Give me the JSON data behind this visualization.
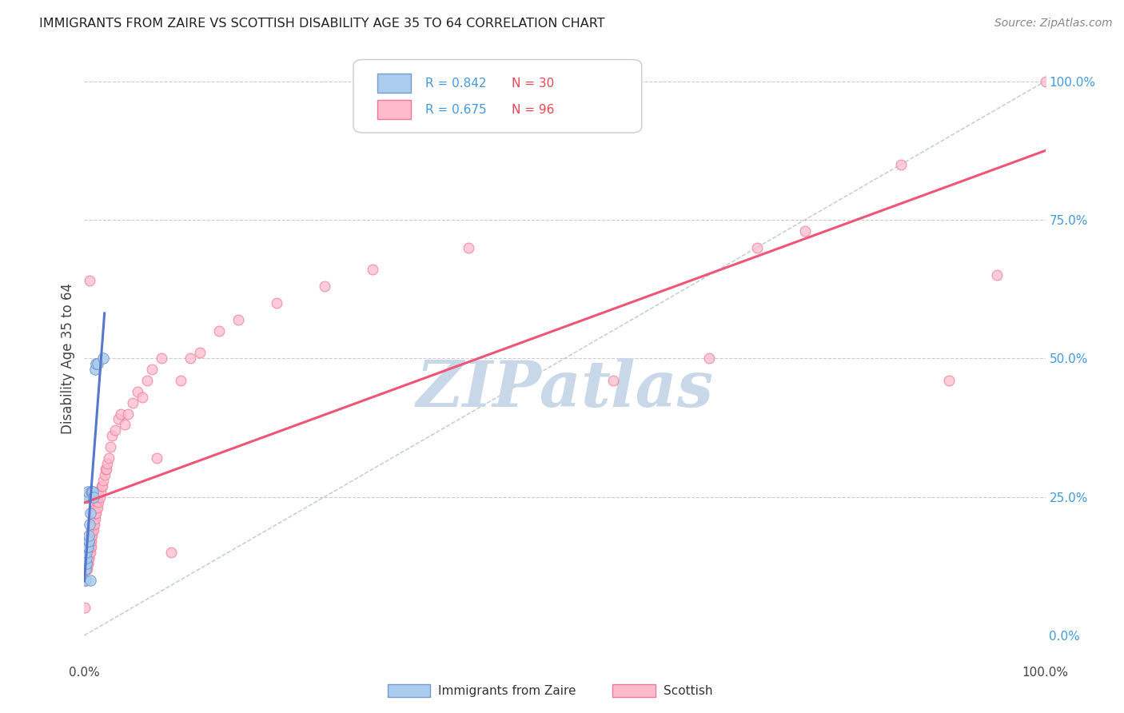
{
  "title": "IMMIGRANTS FROM ZAIRE VS SCOTTISH DISABILITY AGE 35 TO 64 CORRELATION CHART",
  "source": "Source: ZipAtlas.com",
  "ylabel": "Disability Age 35 to 64",
  "legend1_r": "0.842",
  "legend1_n": "30",
  "legend2_r": "0.675",
  "legend2_n": "96",
  "legend_label1": "Immigrants from Zaire",
  "legend_label2": "Scottish",
  "blue_line_color": "#5577CC",
  "blue_scatter_face": "#AACCEE",
  "blue_scatter_edge": "#7799CC",
  "pink_line_color": "#EE5577",
  "pink_scatter_face": "#FFBBCC",
  "pink_scatter_edge": "#EE7799",
  "diag_color": "#AABBCC",
  "grid_color": "#CCCCCC",
  "watermark_color": "#C8D8E8",
  "right_tick_color": "#4499DD",
  "zaire_x": [
    0.1,
    0.1,
    0.1,
    0.15,
    0.15,
    0.2,
    0.2,
    0.2,
    0.25,
    0.25,
    0.3,
    0.3,
    0.35,
    0.35,
    0.4,
    0.4,
    0.45,
    0.5,
    0.5,
    0.55,
    0.6,
    0.65,
    0.7,
    0.8,
    0.9,
    1.0,
    1.1,
    1.2,
    1.4,
    2.0
  ],
  "zaire_y": [
    10,
    13,
    15,
    12,
    14,
    13,
    16,
    25,
    14,
    15,
    16,
    25,
    16,
    17,
    16,
    26,
    17,
    17,
    18,
    20,
    22,
    10,
    26,
    26,
    26,
    25,
    48,
    49,
    49,
    50
  ],
  "scottish_x": [
    0.05,
    0.1,
    0.15,
    0.1,
    0.2,
    0.2,
    0.25,
    0.25,
    0.3,
    0.3,
    0.3,
    0.35,
    0.35,
    0.35,
    0.4,
    0.4,
    0.4,
    0.45,
    0.45,
    0.45,
    0.5,
    0.5,
    0.55,
    0.55,
    0.55,
    0.6,
    0.6,
    0.65,
    0.65,
    0.65,
    0.7,
    0.7,
    0.75,
    0.75,
    0.8,
    0.8,
    0.85,
    0.85,
    0.9,
    0.9,
    0.95,
    1.0,
    1.0,
    1.05,
    1.1,
    1.1,
    1.15,
    1.2,
    1.25,
    1.3,
    1.35,
    1.4,
    1.45,
    1.5,
    1.6,
    1.7,
    1.8,
    1.9,
    2.0,
    2.1,
    2.2,
    2.3,
    2.4,
    2.5,
    2.7,
    2.9,
    3.2,
    3.5,
    3.8,
    4.2,
    4.5,
    5.0,
    5.5,
    6.0,
    6.5,
    7.0,
    7.5,
    8.0,
    9.0,
    10.0,
    11.0,
    12.0,
    14.0,
    16.0,
    20.0,
    25.0,
    30.0,
    40.0,
    55.0,
    65.0,
    70.0,
    75.0,
    85.0,
    90.0,
    95.0,
    100.0
  ],
  "scottish_y": [
    5,
    10,
    12,
    10,
    12,
    14,
    13,
    15,
    12,
    14,
    15,
    13,
    14,
    16,
    13,
    15,
    17,
    14,
    16,
    17,
    14,
    16,
    15,
    17,
    64,
    15,
    17,
    16,
    17,
    18,
    16,
    18,
    17,
    19,
    18,
    20,
    19,
    21,
    20,
    22,
    19,
    20,
    21,
    20,
    21,
    22,
    22,
    23,
    22,
    24,
    23,
    25,
    24,
    26,
    25,
    26,
    27,
    27,
    28,
    29,
    30,
    30,
    31,
    32,
    34,
    36,
    37,
    39,
    40,
    38,
    40,
    42,
    44,
    43,
    46,
    48,
    32,
    50,
    15,
    46,
    50,
    51,
    55,
    57,
    60,
    63,
    66,
    70,
    46,
    50,
    70,
    73,
    85,
    46,
    65,
    100
  ]
}
